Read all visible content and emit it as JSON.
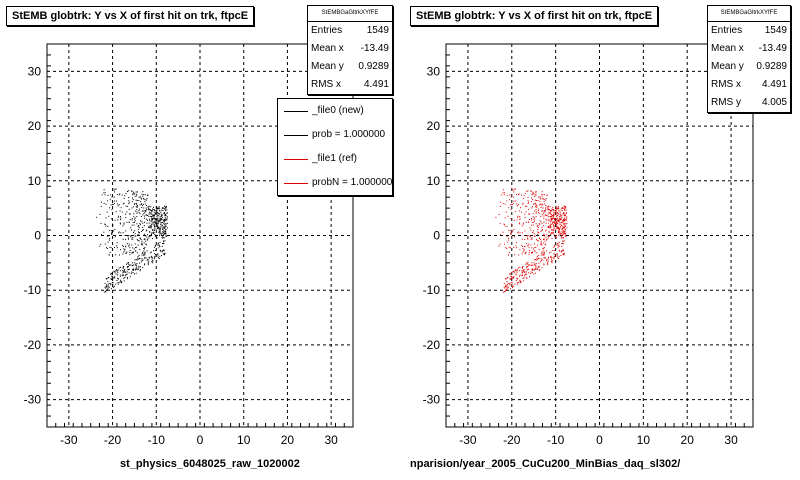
{
  "panels": [
    {
      "title": "StEMB globtrk: Y vs X of first hit on trk, ftpcE",
      "stats": {
        "name": "StEMBGaGltrkXYfFE",
        "rows": [
          {
            "label": "Entries",
            "value": "1549"
          },
          {
            "label": "Mean x",
            "value": "-13.49"
          },
          {
            "label": "Mean y",
            "value": "0.9289"
          },
          {
            "label": "RMS x",
            "value": "4.491"
          }
        ]
      },
      "footer": "st_physics_6048025_raw_1020002",
      "marker_color": "#000000"
    },
    {
      "title": "StEMB globtrk: Y vs X of first hit on trk, ftpcE",
      "stats": {
        "name": "StEMBGaGltrkXYfFE",
        "rows": [
          {
            "label": "Entries",
            "value": "1549"
          },
          {
            "label": "Mean x",
            "value": "-13.49"
          },
          {
            "label": "Mean y",
            "value": "0.9289"
          },
          {
            "label": "RMS x",
            "value": "4.491"
          },
          {
            "label": "RMS y",
            "value": "4.005"
          }
        ]
      },
      "footer": "nparision/year_2005_CuCu200_MinBias_daq_sl302/",
      "marker_color": "#dd0000"
    }
  ],
  "legend": {
    "entries": [
      {
        "label": "_file0 (new)",
        "color": "#000000"
      },
      {
        "label": "prob = 1.000000",
        "color": "#000000"
      },
      {
        "label": "_file1 (ref)",
        "color": "#dd0000"
      },
      {
        "label": "probN = 1.000000",
        "color": "#dd0000"
      }
    ]
  },
  "chart_data": [
    {
      "type": "scatter",
      "title": "StEMB globtrk: Y vs X of first hit on trk, ftpcE",
      "xlabel": "",
      "ylabel": "",
      "xlim": [
        -35,
        35
      ],
      "ylim": [
        -35,
        35
      ],
      "xticks": [
        -30,
        -20,
        -10,
        0,
        10,
        20,
        30
      ],
      "yticks": [
        -30,
        -20,
        -10,
        0,
        10,
        20,
        30
      ],
      "grid": true,
      "series": [
        {
          "name": "_file0 (new)",
          "color": "#000000"
        }
      ],
      "distribution": {
        "n_points": 1549,
        "upper_band": {
          "x_range": [
            -24,
            -7
          ],
          "y_range": [
            -2,
            11
          ]
        },
        "lower_band": {
          "x_from": -22,
          "x_to": -8,
          "y_from": -9,
          "y_to": -2
        },
        "dense_edge_x": -7.5
      }
    },
    {
      "type": "scatter",
      "title": "StEMB globtrk: Y vs X of first hit on trk, ftpcE",
      "xlabel": "",
      "ylabel": "",
      "xlim": [
        -35,
        35
      ],
      "ylim": [
        -35,
        35
      ],
      "xticks": [
        -30,
        -20,
        -10,
        0,
        10,
        20,
        30
      ],
      "yticks": [
        -30,
        -20,
        -10,
        0,
        10,
        20,
        30
      ],
      "grid": true,
      "series": [
        {
          "name": "_file1 (ref)",
          "color": "#dd0000"
        }
      ],
      "distribution": {
        "n_points": 1549,
        "upper_band": {
          "x_range": [
            -24,
            -7
          ],
          "y_range": [
            -2,
            11
          ]
        },
        "lower_band": {
          "x_from": -22,
          "x_to": -8,
          "y_from": -9,
          "y_to": -2
        },
        "dense_edge_x": -7.5
      }
    }
  ]
}
